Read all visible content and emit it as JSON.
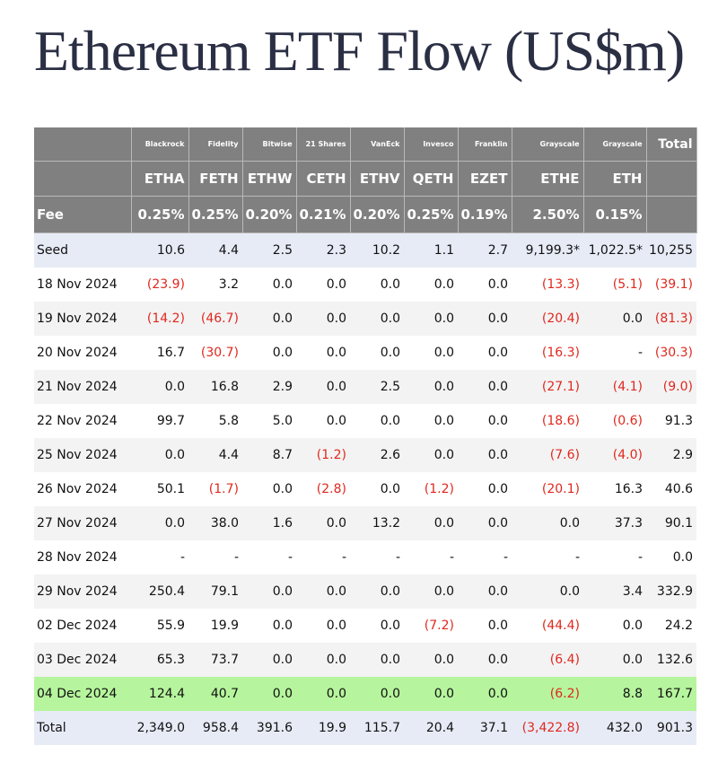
{
  "title": "Ethereum ETF Flow (US$m)",
  "colors": {
    "header_bg": "#808080",
    "highlight_row": "#b6f59d",
    "negative_text": "#e0281e",
    "seed_total_bg": "#e7ebf6"
  },
  "providers": [
    "",
    "Blackrock",
    "Fidelity",
    "Bitwise",
    "21 Shares",
    "VanEck",
    "Invesco",
    "Franklin",
    "Grayscale",
    "Grayscale",
    "Total"
  ],
  "tickers": [
    "",
    "ETHA",
    "FETH",
    "ETHW",
    "CETH",
    "ETHV",
    "QETH",
    "EZET",
    "ETHE",
    "ETH",
    ""
  ],
  "fees": [
    "Fee",
    "0.25%",
    "0.25%",
    "0.20%",
    "0.21%",
    "0.20%",
    "0.25%",
    "0.19%",
    "2.50%",
    "0.15%",
    ""
  ],
  "seed": [
    "Seed",
    "10.6",
    "4.4",
    "2.5",
    "2.3",
    "10.2",
    "1.1",
    "2.7",
    "9,199.3*",
    "1,022.5*",
    "10,255"
  ],
  "rows": [
    [
      "18 Nov 2024",
      "(23.9)",
      "3.2",
      "0.0",
      "0.0",
      "0.0",
      "0.0",
      "0.0",
      "(13.3)",
      "(5.1)",
      "(39.1)"
    ],
    [
      "19 Nov 2024",
      "(14.2)",
      "(46.7)",
      "0.0",
      "0.0",
      "0.0",
      "0.0",
      "0.0",
      "(20.4)",
      "0.0",
      "(81.3)"
    ],
    [
      "20 Nov 2024",
      "16.7",
      "(30.7)",
      "0.0",
      "0.0",
      "0.0",
      "0.0",
      "0.0",
      "(16.3)",
      "-",
      "(30.3)"
    ],
    [
      "21 Nov 2024",
      "0.0",
      "16.8",
      "2.9",
      "0.0",
      "2.5",
      "0.0",
      "0.0",
      "(27.1)",
      "(4.1)",
      "(9.0)"
    ],
    [
      "22 Nov 2024",
      "99.7",
      "5.8",
      "5.0",
      "0.0",
      "0.0",
      "0.0",
      "0.0",
      "(18.6)",
      "(0.6)",
      "91.3"
    ],
    [
      "25 Nov 2024",
      "0.0",
      "4.4",
      "8.7",
      "(1.2)",
      "2.6",
      "0.0",
      "0.0",
      "(7.6)",
      "(4.0)",
      "2.9"
    ],
    [
      "26 Nov 2024",
      "50.1",
      "(1.7)",
      "0.0",
      "(2.8)",
      "0.0",
      "(1.2)",
      "0.0",
      "(20.1)",
      "16.3",
      "40.6"
    ],
    [
      "27 Nov 2024",
      "0.0",
      "38.0",
      "1.6",
      "0.0",
      "13.2",
      "0.0",
      "0.0",
      "0.0",
      "37.3",
      "90.1"
    ],
    [
      "28 Nov 2024",
      "-",
      "-",
      "-",
      "-",
      "-",
      "-",
      "-",
      "-",
      "-",
      "0.0"
    ],
    [
      "29 Nov 2024",
      "250.4",
      "79.1",
      "0.0",
      "0.0",
      "0.0",
      "0.0",
      "0.0",
      "0.0",
      "3.4",
      "332.9"
    ],
    [
      "02 Dec 2024",
      "55.9",
      "19.9",
      "0.0",
      "0.0",
      "0.0",
      "(7.2)",
      "0.0",
      "(44.4)",
      "0.0",
      "24.2"
    ],
    [
      "03 Dec 2024",
      "65.3",
      "73.7",
      "0.0",
      "0.0",
      "0.0",
      "0.0",
      "0.0",
      "(6.4)",
      "0.0",
      "132.6"
    ],
    [
      "04 Dec 2024",
      "124.4",
      "40.7",
      "0.0",
      "0.0",
      "0.0",
      "0.0",
      "0.0",
      "(6.2)",
      "8.8",
      "167.7"
    ]
  ],
  "highlighted_date": "04 Dec 2024",
  "total": [
    "Total",
    "2,349.0",
    "958.4",
    "391.6",
    "19.9",
    "115.7",
    "20.4",
    "37.1",
    "(3,422.8)",
    "432.0",
    "901.3"
  ]
}
